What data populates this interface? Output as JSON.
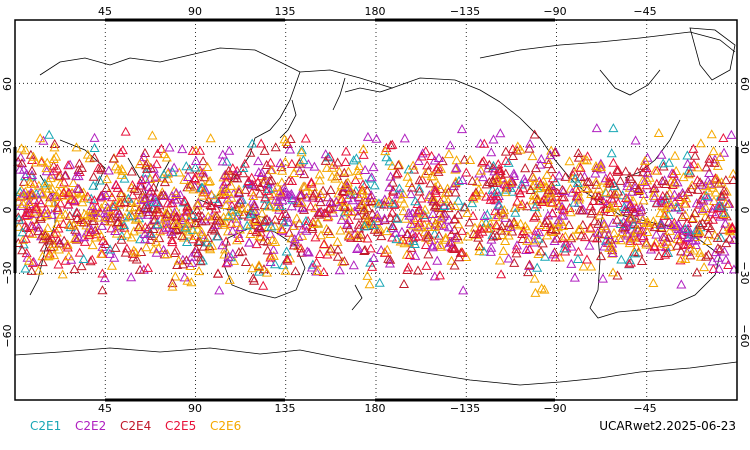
{
  "map": {
    "projection": "cylindrical equidistant",
    "lon_center": 180,
    "lat_range": [
      -90,
      90
    ],
    "grid": "dotted",
    "marker": "triangle-outline",
    "top_ticks": [
      "45",
      "90",
      "135",
      "180",
      "−135",
      "−90",
      "−45"
    ],
    "bottom_ticks": [
      "45",
      "90",
      "135",
      "180",
      "−135",
      "−90",
      "−45"
    ],
    "left_ticks": [
      "60",
      "30",
      "0",
      "−30",
      "−60"
    ],
    "right_ticks": [
      "60",
      "30",
      "0",
      "−30",
      "−60"
    ]
  },
  "legend": [
    {
      "label": "C2E1",
      "color": "#1aa7b5"
    },
    {
      "label": "C2E2",
      "color": "#b020c0"
    },
    {
      "label": "C2E4",
      "color": "#c01a2a"
    },
    {
      "label": "C2E5",
      "color": "#e8123a"
    },
    {
      "label": "C2E6",
      "color": "#f5a800"
    }
  ],
  "caption": "UCARwet2.2025-06-23"
}
